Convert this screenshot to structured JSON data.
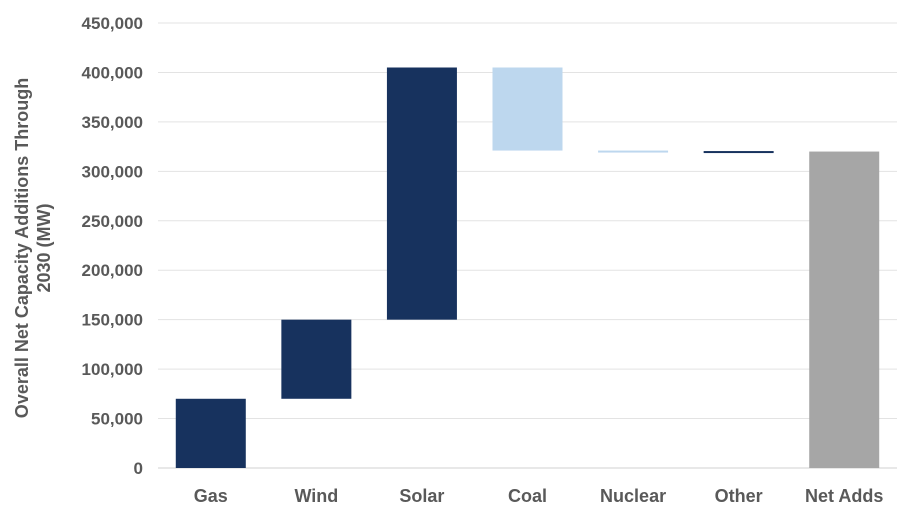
{
  "chart_data": {
    "type": "bar",
    "subtype": "waterfall",
    "title": "",
    "xlabel": "",
    "ylabel_lines": [
      "Overall Net Capacity Additions  Through",
      "2030 (MW)"
    ],
    "ylim": [
      0,
      450000
    ],
    "yticks": [
      0,
      50000,
      100000,
      150000,
      200000,
      250000,
      300000,
      350000,
      400000,
      450000
    ],
    "ytick_labels": [
      "0",
      "50,000",
      "100,000",
      "150,000",
      "200,000",
      "250,000",
      "300,000",
      "350,000",
      "400,000",
      "450,000"
    ],
    "grid": true,
    "legend": "none",
    "categories": [
      "Gas",
      "Wind",
      "Solar",
      "Coal",
      "Nuclear",
      "Other",
      "Net Adds"
    ],
    "steps": [
      {
        "category": "Gas",
        "start": 0,
        "end": 70000,
        "color": "#17325e"
      },
      {
        "category": "Wind",
        "start": 70000,
        "end": 150000,
        "color": "#17325e"
      },
      {
        "category": "Solar",
        "start": 150000,
        "end": 405000,
        "color": "#17325e"
      },
      {
        "category": "Coal",
        "start": 405000,
        "end": 321000,
        "color": "#bdd7ee"
      },
      {
        "category": "Nuclear",
        "start": 321000,
        "end": 319500,
        "color": "#bdd7ee"
      },
      {
        "category": "Other",
        "start": 319500,
        "end": 320500,
        "color": "#17325e"
      },
      {
        "category": "Net Adds",
        "start": 0,
        "end": 320000,
        "color": "#a6a6a6"
      }
    ],
    "colors": {
      "increase": "#17325e",
      "decrease": "#bdd7ee",
      "total": "#a6a6a6"
    }
  }
}
